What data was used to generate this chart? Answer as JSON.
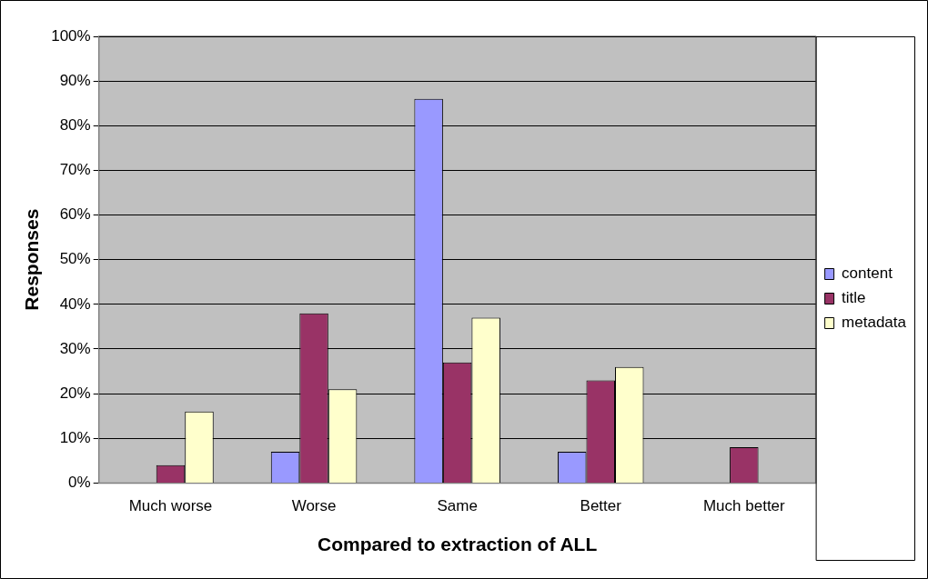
{
  "chart_data": {
    "type": "bar",
    "xlabel": "Compared to extraction of ALL",
    "ylabel": "Responses",
    "categories": [
      "Much worse",
      "Worse",
      "Same",
      "Better",
      "Much better"
    ],
    "series": [
      {
        "name": "content",
        "color": "#9999ff",
        "values": [
          0,
          7,
          86,
          7,
          0
        ]
      },
      {
        "name": "title",
        "color": "#993366",
        "values": [
          4,
          38,
          27,
          23,
          8
        ]
      },
      {
        "name": "metadata",
        "color": "#ffffcc",
        "values": [
          16,
          21,
          37,
          26,
          0
        ]
      }
    ],
    "ylim": [
      0,
      100
    ],
    "yticks": [
      {
        "value": 0,
        "label": "0%"
      },
      {
        "value": 10,
        "label": "10%"
      },
      {
        "value": 20,
        "label": "20%"
      },
      {
        "value": 30,
        "label": "30%"
      },
      {
        "value": 40,
        "label": "40%"
      },
      {
        "value": 50,
        "label": "50%"
      },
      {
        "value": 60,
        "label": "60%"
      },
      {
        "value": 70,
        "label": "70%"
      },
      {
        "value": 80,
        "label": "80%"
      },
      {
        "value": 90,
        "label": "90%"
      },
      {
        "value": 100,
        "label": "100%"
      }
    ],
    "grid": "y",
    "legend": "right"
  }
}
